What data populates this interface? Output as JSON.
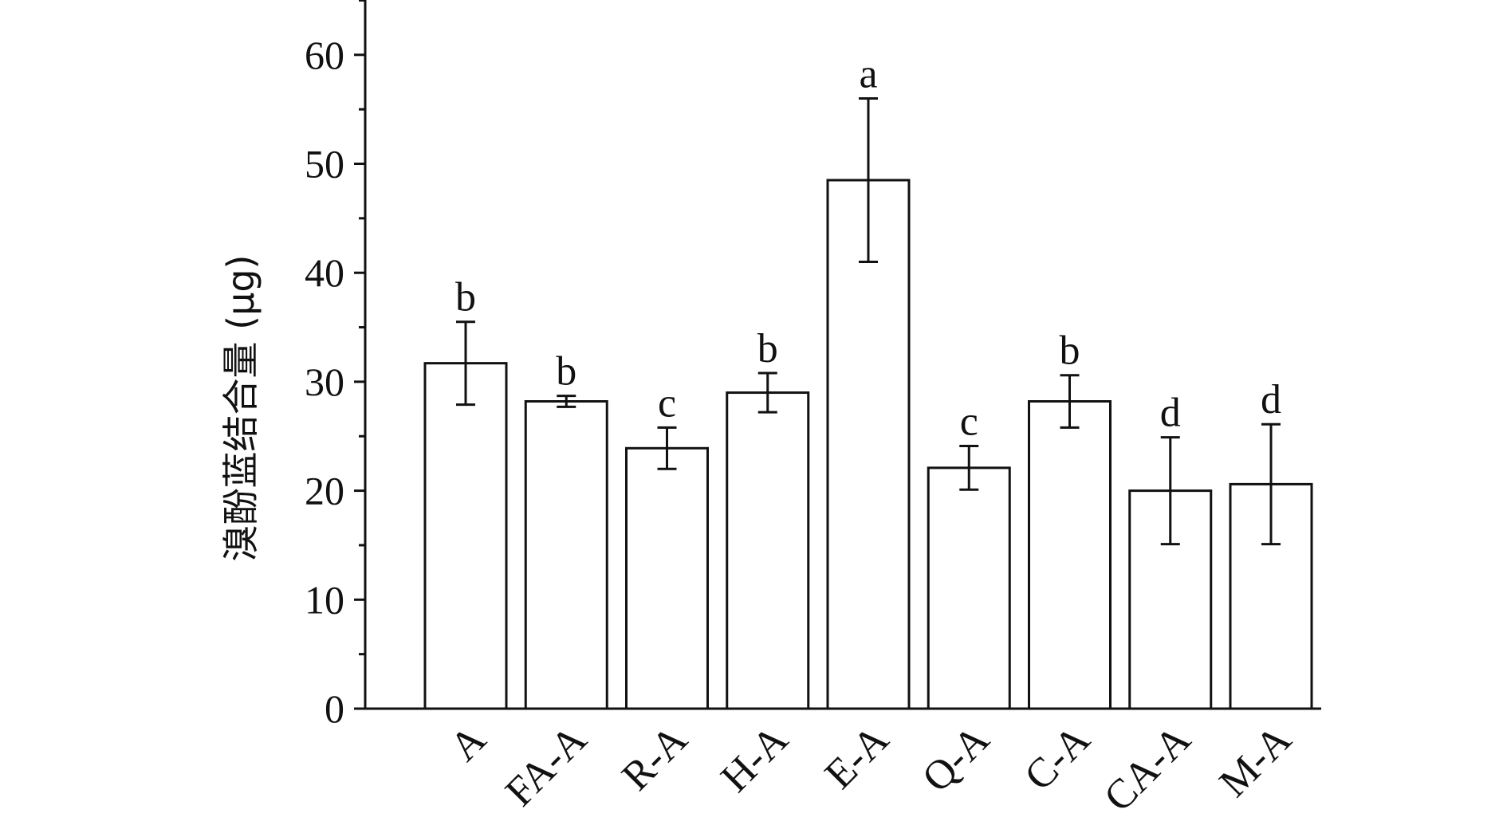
{
  "chart_data": {
    "type": "bar",
    "ylabel": "溴酚蓝结合量 (μg)",
    "xlabel": "",
    "ylim": [
      0,
      65
    ],
    "yticks": [
      0,
      10,
      20,
      30,
      40,
      50,
      60
    ],
    "grid": false,
    "categories": [
      "A",
      "FA-A",
      "R-A",
      "H-A",
      "E-A",
      "Q-A",
      "C-A",
      "CA-A",
      "M-A"
    ],
    "values": [
      31.7,
      28.2,
      23.9,
      29.0,
      48.5,
      22.1,
      28.2,
      20.0,
      20.6
    ],
    "errors": [
      3.8,
      0.5,
      1.9,
      1.8,
      7.5,
      2.0,
      2.4,
      4.9,
      5.5
    ],
    "significance": [
      "b",
      "b",
      "c",
      "b",
      "a",
      "c",
      "b",
      "d",
      "d"
    ],
    "bar_fill": "#ffffff",
    "bar_stroke": "#111111"
  }
}
